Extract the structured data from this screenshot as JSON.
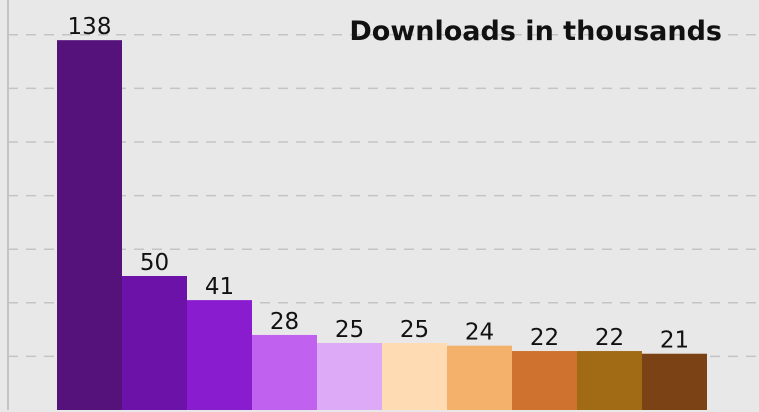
{
  "chart_data": {
    "type": "bar",
    "title": "Downloads in thousands",
    "categories": [
      null,
      null,
      null,
      null,
      null,
      null,
      null,
      null,
      null,
      null
    ],
    "values": [
      138,
      50,
      41,
      28,
      25,
      25,
      24,
      22,
      22,
      21
    ],
    "colors": [
      "#55127a",
      "#6c12a8",
      "#8a1ccf",
      "#c061f0",
      "#dcaaf7",
      "#ffdbb3",
      "#f4b16c",
      "#cf7230",
      "#a16a15",
      "#7b4216"
    ],
    "ylim": [
      0,
      150
    ],
    "yticks": [
      20,
      40,
      60,
      80,
      100,
      120,
      140
    ],
    "grid": true,
    "tick_labels": false,
    "value_labels_shown": true
  }
}
